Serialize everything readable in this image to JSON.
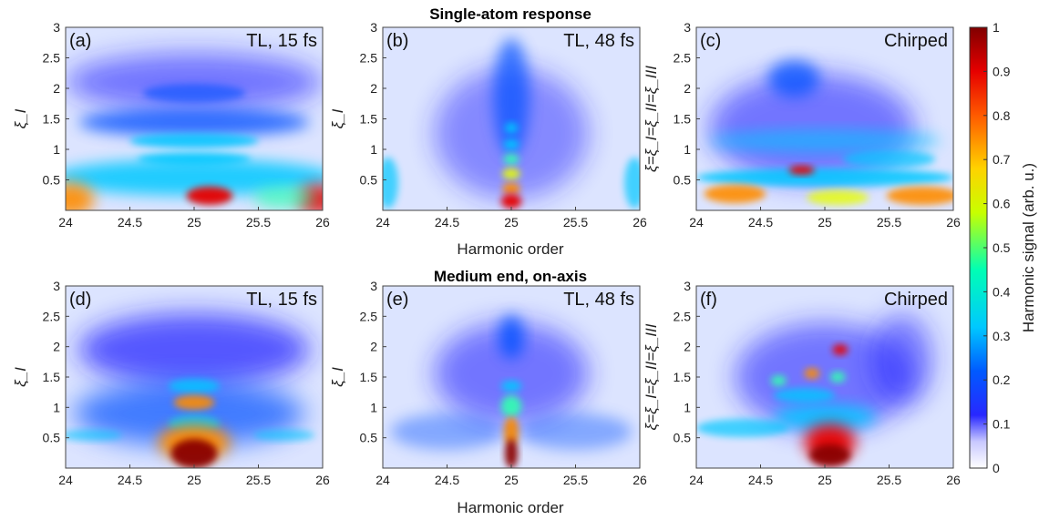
{
  "figure": {
    "row_titles": [
      "Single-atom response",
      "Medium end, on-axis"
    ],
    "xlabel": "Harmonic order",
    "colormap": "jet",
    "colorbar": {
      "label": "Harmonic signal (arb. u.)",
      "range": [
        0,
        1
      ],
      "ticks": [
        "0",
        "0.1",
        "0.2",
        "0.3",
        "0.4",
        "0.5",
        "0.6",
        "0.7",
        "0.8",
        "0.9",
        "1"
      ]
    }
  },
  "chart_data": [
    {
      "panel": "a",
      "type": "heatmap",
      "label": "(a)",
      "title": "TL, 15 fs",
      "ylabel": "ξ_I",
      "xlim": [
        24,
        26
      ],
      "ylim": [
        0,
        3
      ],
      "xticks": [
        "24",
        "24.5",
        "25",
        "25.5",
        "26"
      ],
      "yticks": [
        "0.5",
        "1",
        "1.5",
        "2",
        "2.5",
        "3"
      ]
    },
    {
      "panel": "b",
      "type": "heatmap",
      "label": "(b)",
      "title": "TL, 48 fs",
      "ylabel": "ξ_I",
      "xlim": [
        24,
        26
      ],
      "ylim": [
        0,
        3
      ],
      "xticks": [
        "24",
        "24.5",
        "25",
        "25.5",
        "26"
      ],
      "yticks": [
        "0.5",
        "1",
        "1.5",
        "2",
        "2.5",
        "3"
      ]
    },
    {
      "panel": "c",
      "type": "heatmap",
      "label": "(c)",
      "title": "Chirped",
      "ylabel": "ξ=ξ_I=ξ_II=ξ_III",
      "xlim": [
        24,
        26
      ],
      "ylim": [
        0,
        3
      ],
      "xticks": [
        "24",
        "24.5",
        "25",
        "25.5",
        "26"
      ],
      "yticks": [
        "0.5",
        "1",
        "1.5",
        "2",
        "2.5",
        "3"
      ]
    },
    {
      "panel": "d",
      "type": "heatmap",
      "label": "(d)",
      "title": "TL, 15 fs",
      "ylabel": "ξ_I",
      "xlim": [
        24,
        26
      ],
      "ylim": [
        0,
        3
      ],
      "xticks": [
        "24",
        "24.5",
        "25",
        "25.5",
        "26"
      ],
      "yticks": [
        "0.5",
        "1",
        "1.5",
        "2",
        "2.5",
        "3"
      ]
    },
    {
      "panel": "e",
      "type": "heatmap",
      "label": "(e)",
      "title": "TL, 48 fs",
      "ylabel": "ξ_I",
      "xlim": [
        24,
        26
      ],
      "ylim": [
        0,
        3
      ],
      "xticks": [
        "24",
        "24.5",
        "25",
        "25.5",
        "26"
      ],
      "yticks": [
        "0.5",
        "1",
        "1.5",
        "2",
        "2.5",
        "3"
      ]
    },
    {
      "panel": "f",
      "type": "heatmap",
      "label": "(f)",
      "title": "Chirped",
      "ylabel": "ξ=ξ_I=ξ_II=ξ_III",
      "xlim": [
        24,
        26
      ],
      "ylim": [
        0,
        3
      ],
      "xticks": [
        "24",
        "24.5",
        "25",
        "25.5",
        "26"
      ],
      "yticks": [
        "0.5",
        "1",
        "1.5",
        "2",
        "2.5",
        "3"
      ]
    }
  ]
}
